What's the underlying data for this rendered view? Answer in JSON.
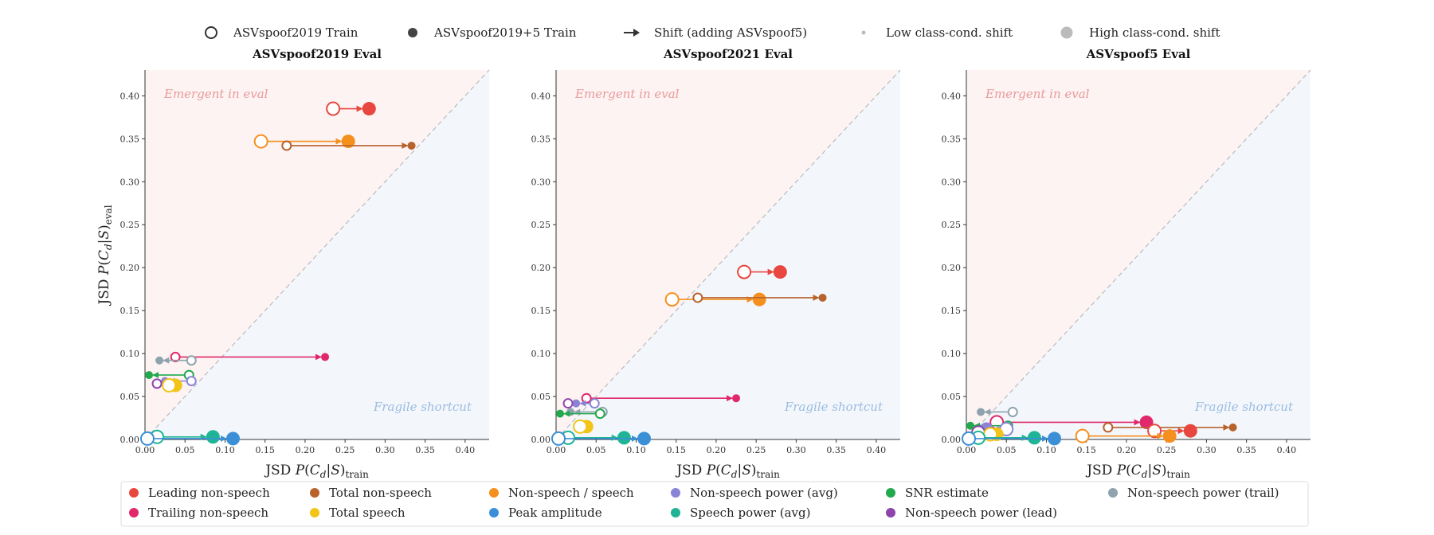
{
  "top_legend": [
    {
      "marker": "open-circle",
      "label": "ASVspoof2019 Train"
    },
    {
      "marker": "filled-circle",
      "label": "ASVspoof2019+5 Train"
    },
    {
      "marker": "arrow",
      "label": "Shift (adding ASVspoof5)"
    },
    {
      "marker": "small-dot",
      "label": "Low class-cond. shift"
    },
    {
      "marker": "large-dot",
      "label": "High class-cond. shift"
    }
  ],
  "features": [
    {
      "key": "lead",
      "label": "Leading non-speech",
      "color": "#e8473f"
    },
    {
      "key": "trail",
      "label": "Trailing non-speech",
      "color": "#e0286a"
    },
    {
      "key": "total_ns",
      "label": "Total non-speech",
      "color": "#b8622c"
    },
    {
      "key": "total_sp",
      "label": "Total speech",
      "color": "#f2c418"
    },
    {
      "key": "ratio",
      "label": "Non-speech / speech",
      "color": "#f5901e"
    },
    {
      "key": "peak",
      "label": "Peak amplitude",
      "color": "#3a8fd6"
    },
    {
      "key": "nsp_avg",
      "label": "Non-speech power (avg)",
      "color": "#8a84d6"
    },
    {
      "key": "sp_avg",
      "label": "Speech power (avg)",
      "color": "#1fb496"
    },
    {
      "key": "snr",
      "label": "SNR estimate",
      "color": "#22a84d"
    },
    {
      "key": "nsp_lead",
      "label": "Non-speech power (lead)",
      "color": "#8e44ad"
    },
    {
      "key": "nsp_trail",
      "label": "Non-speech power (trail)",
      "color": "#8ea3ad"
    }
  ],
  "region_labels": {
    "emergent": "Emergent in eval",
    "fragile": "Fragile shortcut"
  },
  "colors": {
    "emergent_fill": "#fdf3f3",
    "fragile_fill": "#f3f7fc",
    "emergent_text": "#e99a9a",
    "fragile_text": "#9bbbe0",
    "diagonal": "#bbbbbb"
  },
  "chart_data": [
    {
      "type": "scatter",
      "title": "ASVspoof2019 Eval",
      "xlabel": "JSD P(C_d|S)_train",
      "ylabel": "JSD P(C_d|S)_eval",
      "xlim": [
        0,
        0.43
      ],
      "ylim": [
        0,
        0.43
      ],
      "ticks": [
        "0.00",
        "0.05",
        "0.10",
        "0.15",
        "0.20",
        "0.25",
        "0.30",
        "0.35",
        "0.40"
      ],
      "grid": false,
      "points": [
        {
          "f": "lead",
          "x0": 0.235,
          "x1": 0.28,
          "y": 0.385,
          "size": "high"
        },
        {
          "f": "ratio",
          "x0": 0.145,
          "x1": 0.254,
          "y": 0.347,
          "size": "high"
        },
        {
          "f": "total_ns",
          "x0": 0.177,
          "x1": 0.333,
          "y": 0.342,
          "size": "low"
        },
        {
          "f": "trail",
          "x0": 0.038,
          "x1": 0.225,
          "y": 0.096,
          "size": "low"
        },
        {
          "f": "nsp_trail",
          "x0": 0.058,
          "x1": 0.018,
          "y": 0.092,
          "size": "low"
        },
        {
          "f": "snr",
          "x0": 0.055,
          "x1": 0.005,
          "y": 0.075,
          "size": "low"
        },
        {
          "f": "nsp_avg",
          "x0": 0.058,
          "x1": 0.025,
          "y": 0.068,
          "size": "low"
        },
        {
          "f": "nsp_lead",
          "x0": 0.015,
          "x1": 0.015,
          "y": 0.065,
          "size": "low"
        },
        {
          "f": "total_sp",
          "x0": 0.03,
          "x1": 0.038,
          "y": 0.063,
          "size": "high"
        },
        {
          "f": "sp_avg",
          "x0": 0.015,
          "x1": 0.085,
          "y": 0.003,
          "size": "high"
        },
        {
          "f": "peak",
          "x0": 0.003,
          "x1": 0.11,
          "y": 0.001,
          "size": "high"
        }
      ]
    },
    {
      "type": "scatter",
      "title": "ASVspoof2021 Eval",
      "xlabel": "JSD P(C_d|S)_train",
      "ylabel": "",
      "xlim": [
        0,
        0.43
      ],
      "ylim": [
        0,
        0.43
      ],
      "ticks": [
        "0.00",
        "0.05",
        "0.10",
        "0.15",
        "0.20",
        "0.25",
        "0.30",
        "0.35",
        "0.40"
      ],
      "grid": false,
      "points": [
        {
          "f": "lead",
          "x0": 0.235,
          "x1": 0.28,
          "y": 0.195,
          "size": "high"
        },
        {
          "f": "ratio",
          "x0": 0.145,
          "x1": 0.254,
          "y": 0.163,
          "size": "high"
        },
        {
          "f": "total_ns",
          "x0": 0.177,
          "x1": 0.333,
          "y": 0.165,
          "size": "low"
        },
        {
          "f": "trail",
          "x0": 0.038,
          "x1": 0.225,
          "y": 0.048,
          "size": "low"
        },
        {
          "f": "nsp_avg",
          "x0": 0.048,
          "x1": 0.025,
          "y": 0.042,
          "size": "low"
        },
        {
          "f": "nsp_lead",
          "x0": 0.015,
          "x1": 0.015,
          "y": 0.042,
          "size": "low"
        },
        {
          "f": "nsp_trail",
          "x0": 0.058,
          "x1": 0.018,
          "y": 0.032,
          "size": "low"
        },
        {
          "f": "snr",
          "x0": 0.055,
          "x1": 0.005,
          "y": 0.03,
          "size": "low"
        },
        {
          "f": "total_sp",
          "x0": 0.03,
          "x1": 0.038,
          "y": 0.015,
          "size": "high"
        },
        {
          "f": "sp_avg",
          "x0": 0.015,
          "x1": 0.085,
          "y": 0.002,
          "size": "high"
        },
        {
          "f": "peak",
          "x0": 0.003,
          "x1": 0.11,
          "y": 0.001,
          "size": "high"
        }
      ]
    },
    {
      "type": "scatter",
      "title": "ASVspoof5 Eval",
      "xlabel": "JSD P(C_d|S)_train",
      "ylabel": "",
      "xlim": [
        0,
        0.43
      ],
      "ylim": [
        0,
        0.43
      ],
      "ticks": [
        "0.00",
        "0.05",
        "0.10",
        "0.15",
        "0.20",
        "0.25",
        "0.30",
        "0.35",
        "0.40"
      ],
      "grid": false,
      "points": [
        {
          "f": "nsp_trail",
          "x0": 0.058,
          "x1": 0.018,
          "y": 0.032,
          "size": "low"
        },
        {
          "f": "trail",
          "x0": 0.038,
          "x1": 0.225,
          "y": 0.02,
          "size": "high"
        },
        {
          "f": "snr",
          "x0": 0.052,
          "x1": 0.005,
          "y": 0.016,
          "size": "low"
        },
        {
          "f": "nsp_avg",
          "x0": 0.05,
          "x1": 0.025,
          "y": 0.012,
          "size": "high"
        },
        {
          "f": "total_ns",
          "x0": 0.177,
          "x1": 0.333,
          "y": 0.014,
          "size": "low"
        },
        {
          "f": "lead",
          "x0": 0.235,
          "x1": 0.28,
          "y": 0.01,
          "size": "high"
        },
        {
          "f": "nsp_lead",
          "x0": 0.015,
          "x1": 0.015,
          "y": 0.008,
          "size": "high"
        },
        {
          "f": "total_sp",
          "x0": 0.03,
          "x1": 0.038,
          "y": 0.006,
          "size": "high"
        },
        {
          "f": "ratio",
          "x0": 0.145,
          "x1": 0.254,
          "y": 0.004,
          "size": "high"
        },
        {
          "f": "sp_avg",
          "x0": 0.015,
          "x1": 0.085,
          "y": 0.002,
          "size": "high"
        },
        {
          "f": "peak",
          "x0": 0.003,
          "x1": 0.11,
          "y": 0.001,
          "size": "high"
        }
      ]
    }
  ]
}
